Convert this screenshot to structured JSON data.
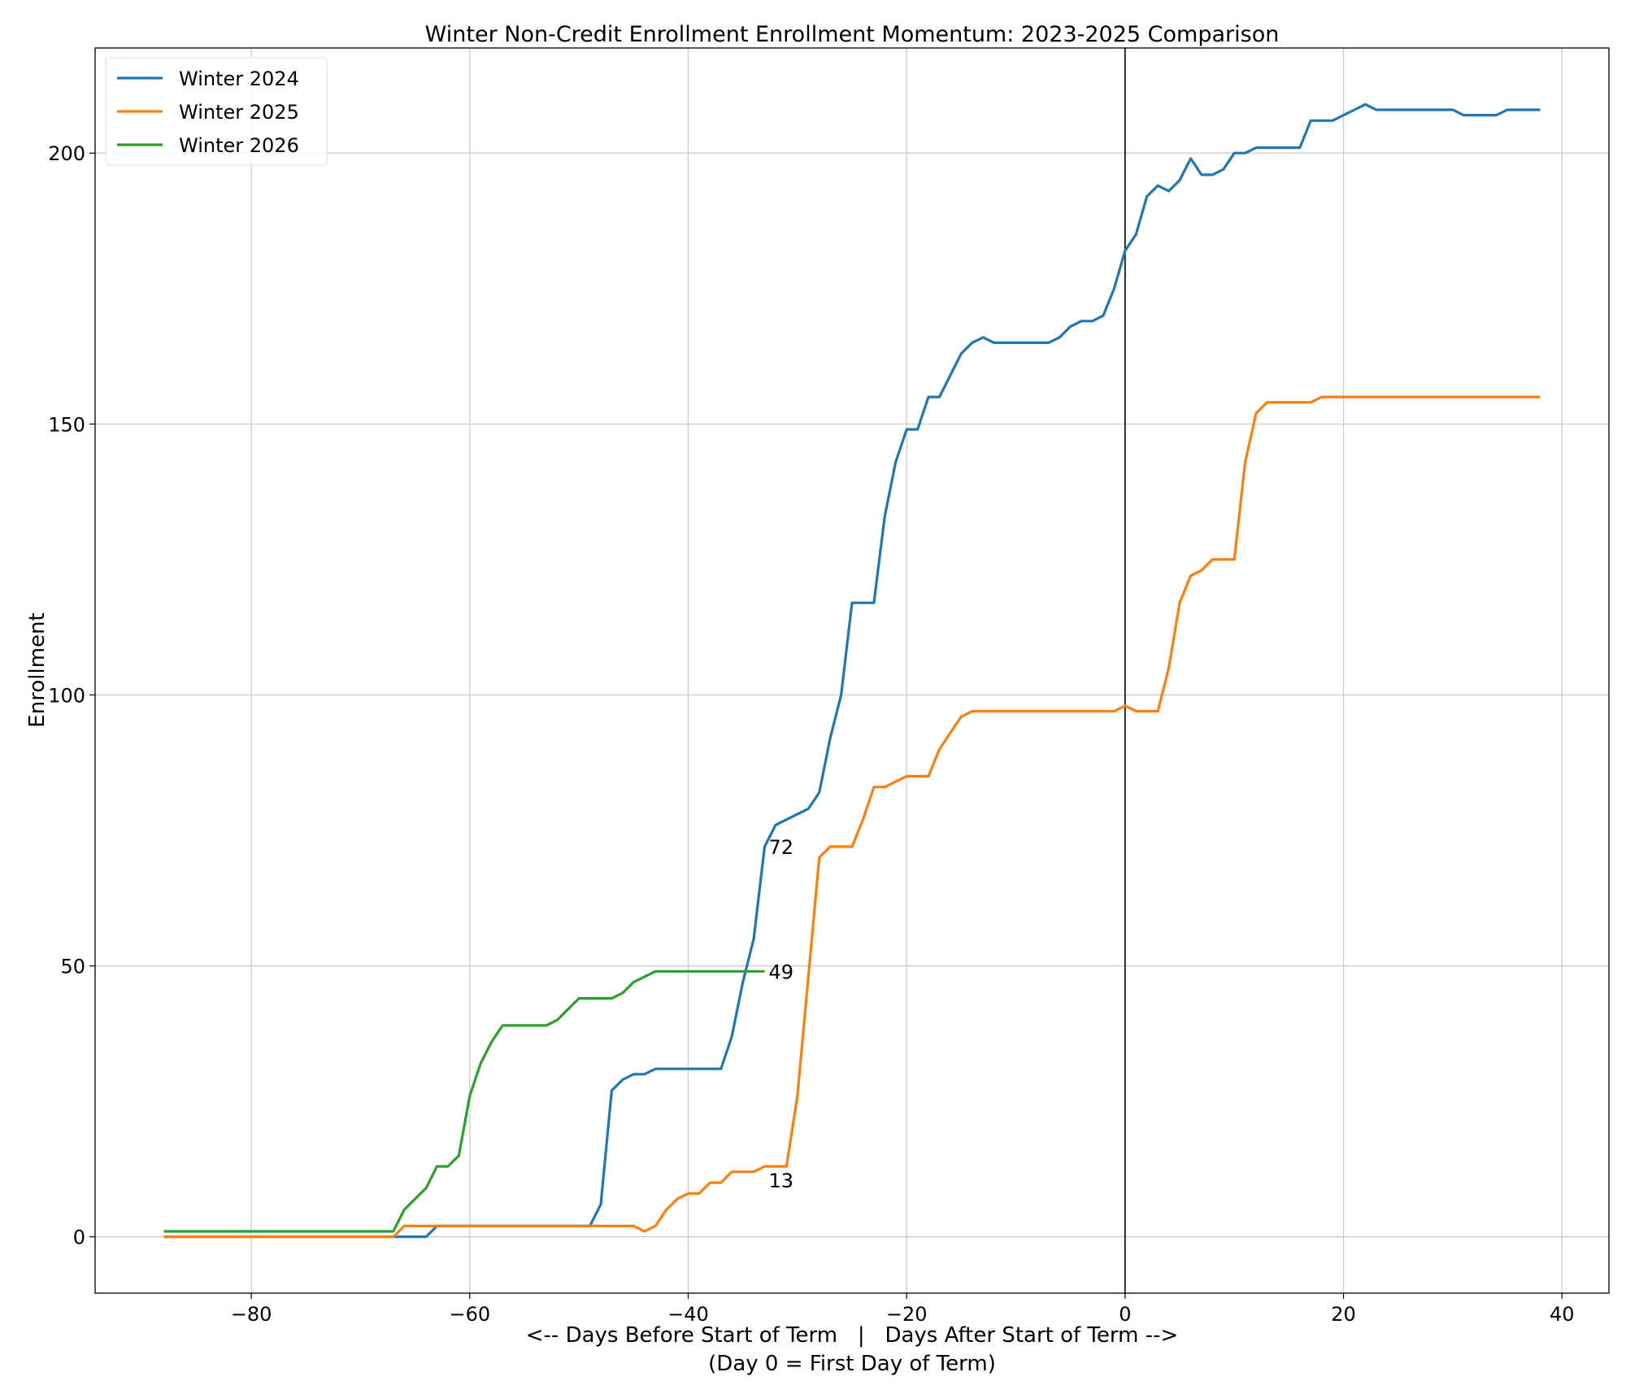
{
  "chart_data": {
    "type": "line",
    "title": "Winter Non-Credit Enrollment Enrollment Momentum: 2023-2025 Comparison",
    "xlabel": "<-- Days Before Start of Term   |   Days After Start of Term -->",
    "xlabel2": "(Day 0 = First Day of Term)",
    "ylabel": "Enrollment",
    "xlim": [
      -94.3,
      44.3
    ],
    "ylim": [
      -10.4,
      219.4
    ],
    "xticks": [
      -80,
      -60,
      -40,
      -20,
      0,
      20,
      40
    ],
    "xtick_labels": [
      "−80",
      "−60",
      "−40",
      "−20",
      "0",
      "20",
      "40"
    ],
    "yticks": [
      0,
      50,
      100,
      150,
      200
    ],
    "ytick_labels": [
      "0",
      "50",
      "100",
      "150",
      "200"
    ],
    "grid": true,
    "legend_position": "top-left",
    "reference_line_x": 0,
    "series": [
      {
        "name": "Winter 2024",
        "color": "#1f77b4",
        "x_start": -88,
        "values": [
          0,
          0,
          0,
          0,
          0,
          0,
          0,
          0,
          0,
          0,
          0,
          0,
          0,
          0,
          0,
          0,
          0,
          0,
          0,
          0,
          0,
          0,
          0,
          0,
          0,
          2,
          2,
          2,
          2,
          2,
          2,
          2,
          2,
          2,
          2,
          2,
          2,
          2,
          2,
          2,
          6,
          27,
          29,
          30,
          30,
          31,
          31,
          31,
          31,
          31,
          31,
          31,
          37,
          47,
          55,
          72,
          76,
          77,
          78,
          79,
          82,
          92,
          100,
          117,
          117,
          117,
          133,
          143,
          149,
          149,
          155,
          155,
          159,
          163,
          165,
          166,
          165,
          165,
          165,
          165,
          165,
          165,
          166,
          168,
          169,
          169,
          170,
          175,
          182,
          185,
          192,
          194,
          193,
          195,
          199,
          196,
          196,
          197,
          200,
          200,
          201,
          201,
          201,
          201,
          201,
          206,
          206,
          206,
          207,
          208,
          209,
          208,
          208,
          208,
          208,
          208,
          208,
          208,
          208,
          207,
          207,
          207,
          207,
          208,
          208,
          208,
          208
        ]
      },
      {
        "name": "Winter 2025",
        "color": "#ff7f0e",
        "x_start": -88,
        "values": [
          0,
          0,
          0,
          0,
          0,
          0,
          0,
          0,
          0,
          0,
          0,
          0,
          0,
          0,
          0,
          0,
          0,
          0,
          0,
          0,
          0,
          0,
          2,
          2,
          2,
          2,
          2,
          2,
          2,
          2,
          2,
          2,
          2,
          2,
          2,
          2,
          2,
          2,
          2,
          2,
          2,
          2,
          2,
          2,
          1,
          2,
          5,
          7,
          8,
          8,
          10,
          10,
          12,
          12,
          12,
          13,
          13,
          13,
          26,
          48,
          70,
          72,
          72,
          72,
          77,
          83,
          83,
          84,
          85,
          85,
          85,
          90,
          93,
          96,
          97,
          97,
          97,
          97,
          97,
          97,
          97,
          97,
          97,
          97,
          97,
          97,
          97,
          97,
          98,
          97,
          97,
          97,
          105,
          117,
          122,
          123,
          125,
          125,
          125,
          143,
          152,
          154,
          154,
          154,
          154,
          154,
          155,
          155,
          155,
          155,
          155,
          155,
          155,
          155,
          155,
          155,
          155,
          155,
          155,
          155,
          155,
          155,
          155,
          155,
          155,
          155,
          155
        ]
      },
      {
        "name": "Winter 2026",
        "color": "#2ca02c",
        "x_start": -88,
        "values": [
          1,
          1,
          1,
          1,
          1,
          1,
          1,
          1,
          1,
          1,
          1,
          1,
          1,
          1,
          1,
          1,
          1,
          1,
          1,
          1,
          1,
          1,
          5,
          7,
          9,
          13,
          13,
          15,
          26,
          32,
          36,
          39,
          39,
          39,
          39,
          39,
          40,
          42,
          44,
          44,
          44,
          44,
          45,
          47,
          48,
          49,
          49,
          49,
          49,
          49,
          49,
          49,
          49,
          49,
          49,
          49
        ]
      }
    ],
    "annotations": [
      {
        "text": "72",
        "x": -33,
        "y": 72
      },
      {
        "text": "49",
        "x": -33,
        "y": 49
      },
      {
        "text": "13",
        "x": -33,
        "y": 13
      }
    ]
  }
}
